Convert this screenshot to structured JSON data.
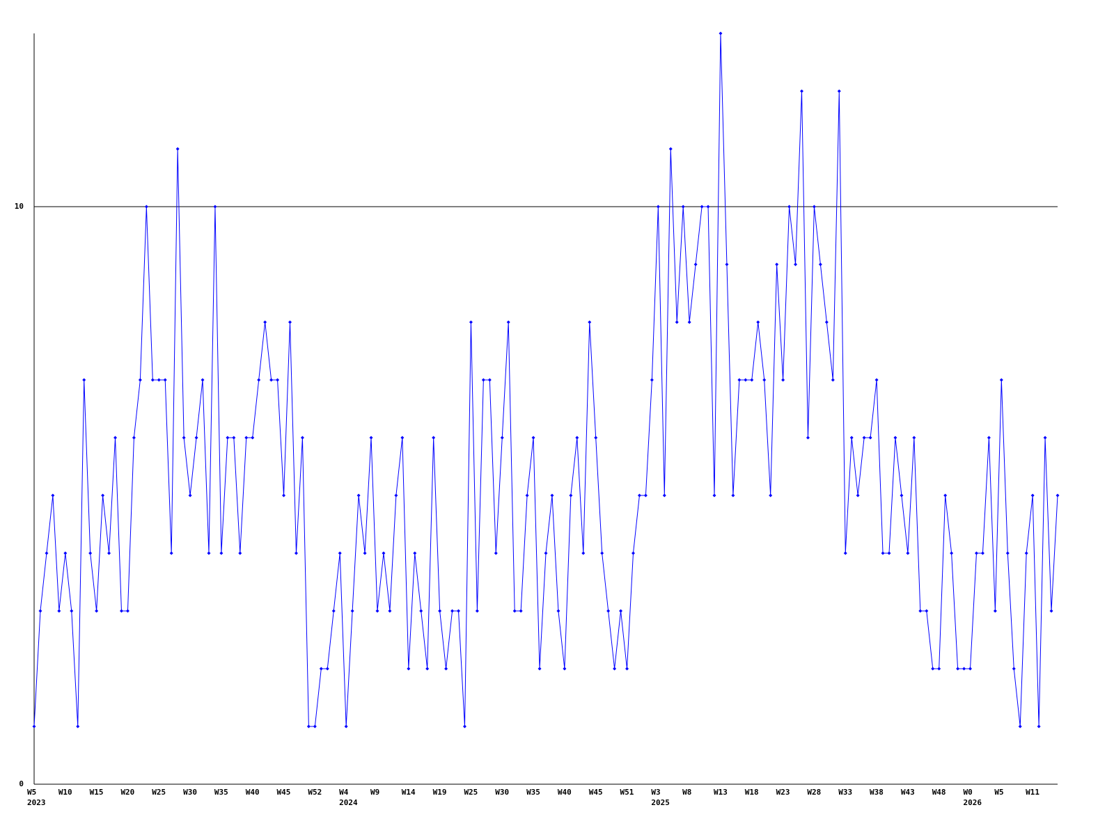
{
  "chart_data": {
    "type": "line",
    "categories": [
      "W5",
      null,
      null,
      null,
      null,
      "W10",
      null,
      null,
      null,
      null,
      "W15",
      null,
      null,
      null,
      null,
      "W20",
      null,
      null,
      null,
      null,
      "W25",
      null,
      null,
      null,
      null,
      "W30",
      null,
      null,
      null,
      null,
      "W35",
      null,
      null,
      null,
      null,
      "W40",
      null,
      null,
      null,
      null,
      "W45",
      null,
      null,
      null,
      null,
      "W52",
      null,
      null,
      null,
      null,
      "W4",
      null,
      null,
      null,
      null,
      "W9",
      null,
      null,
      null,
      null,
      "W14",
      null,
      null,
      null,
      null,
      "W19",
      null,
      null,
      null,
      null,
      "W25",
      null,
      null,
      null,
      null,
      "W30",
      null,
      null,
      null,
      null,
      "W35",
      null,
      null,
      null,
      null,
      "W40",
      null,
      null,
      null,
      null,
      "W45",
      null,
      null,
      null,
      null,
      "W51",
      null,
      null,
      null,
      null,
      "W3",
      null,
      null,
      null,
      null,
      "W8",
      null,
      null,
      null,
      null,
      "W13",
      null,
      null,
      null,
      null,
      "W18",
      null,
      null,
      null,
      null,
      "W23",
      null,
      null,
      null,
      null,
      "W28",
      null,
      null,
      null,
      null,
      "W33",
      null,
      null,
      null,
      null,
      "W38",
      null,
      null,
      null,
      null,
      "W43",
      null,
      null,
      null,
      null,
      "W48",
      null,
      null,
      null,
      null,
      "W0",
      null,
      null,
      null,
      null,
      "W5",
      null,
      null,
      null,
      null,
      "W11",
      null,
      null,
      null,
      null
    ],
    "years": [
      "2023",
      null,
      null,
      null,
      null,
      null,
      null,
      null,
      null,
      null,
      null,
      null,
      null,
      null,
      null,
      null,
      null,
      null,
      null,
      null,
      null,
      null,
      null,
      null,
      null,
      null,
      null,
      null,
      null,
      null,
      null,
      null,
      null,
      null,
      null,
      null,
      null,
      null,
      null,
      null,
      null,
      null,
      null,
      null,
      null,
      null,
      null,
      null,
      null,
      null,
      "2024",
      null,
      null,
      null,
      null,
      null,
      null,
      null,
      null,
      null,
      null,
      null,
      null,
      null,
      null,
      null,
      null,
      null,
      null,
      null,
      null,
      null,
      null,
      null,
      null,
      null,
      null,
      null,
      null,
      null,
      null,
      null,
      null,
      null,
      null,
      null,
      null,
      null,
      null,
      null,
      null,
      null,
      null,
      null,
      null,
      null,
      null,
      null,
      null,
      null,
      "2025",
      null,
      null,
      null,
      null,
      null,
      null,
      null,
      null,
      null,
      null,
      null,
      null,
      null,
      null,
      null,
      null,
      null,
      null,
      null,
      null,
      null,
      null,
      null,
      null,
      null,
      null,
      null,
      null,
      null,
      null,
      null,
      null,
      null,
      null,
      null,
      null,
      null,
      null,
      null,
      null,
      null,
      null,
      null,
      null,
      null,
      null,
      null,
      null,
      null,
      "2026",
      null,
      null,
      null,
      null,
      null,
      null,
      null,
      null,
      null,
      null,
      null,
      null,
      null,
      null
    ],
    "series": [
      {
        "color": "#0000ff",
        "values": [
          1,
          3,
          4,
          5,
          3,
          4,
          3,
          1,
          7,
          4,
          3,
          5,
          4,
          6,
          3,
          3,
          6,
          7,
          10,
          7,
          7,
          7,
          4,
          11,
          6,
          5,
          6,
          7,
          4,
          10,
          4,
          6,
          6,
          4,
          6,
          6,
          7,
          8,
          7,
          7,
          5,
          8,
          4,
          6,
          1,
          1,
          2,
          2,
          3,
          4,
          1,
          3,
          5,
          4,
          6,
          3,
          4,
          3,
          5,
          6,
          2,
          4,
          3,
          2,
          6,
          3,
          2,
          3,
          3,
          1,
          8,
          3,
          7,
          7,
          4,
          6,
          8,
          3,
          3,
          5,
          6,
          2,
          4,
          5,
          3,
          2,
          5,
          6,
          4,
          8,
          6,
          4,
          3,
          2,
          3,
          2,
          4,
          5,
          5,
          7,
          10,
          5,
          11,
          8,
          10,
          8,
          9,
          10,
          10,
          5,
          13,
          9,
          5,
          7,
          7,
          7,
          8,
          7,
          5,
          9,
          7,
          10,
          9,
          12,
          6,
          10,
          9,
          8,
          7,
          12,
          4,
          6,
          5,
          6,
          6,
          7,
          4,
          4,
          6,
          5,
          4,
          6,
          3,
          3,
          2,
          2,
          5,
          4,
          2,
          2,
          2,
          4,
          4,
          6,
          3,
          7,
          4,
          2,
          1,
          4,
          5,
          1,
          6,
          3,
          5
        ]
      }
    ],
    "ylim": [
      0,
      13
    ],
    "yticks": [
      0,
      10
    ],
    "grid": true
  }
}
